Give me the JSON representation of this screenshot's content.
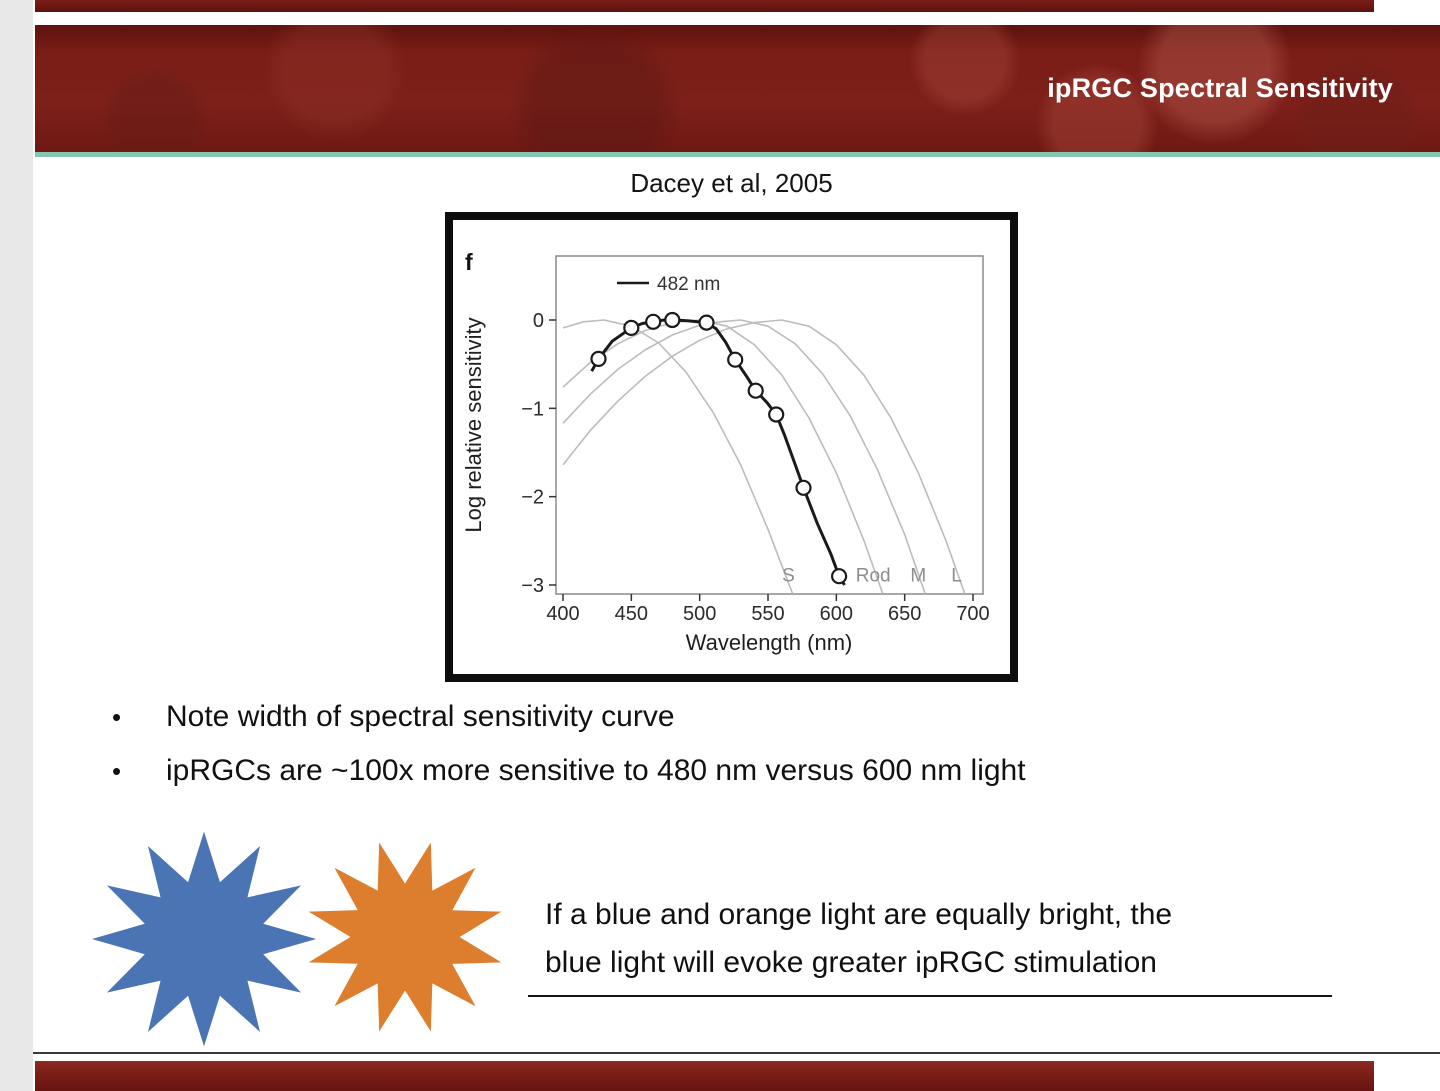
{
  "slide": {
    "title": "ipRGC Spectral Sensitivity",
    "figure_caption": "Dacey et al, 2005",
    "bullet_char": "•",
    "bullets": [
      "Note width of spectral sensitivity curve",
      "ipRGCs are ~100x more sensitive to 480 nm versus 600 nm light"
    ],
    "callout": {
      "line1": "If a blue and orange light are equally bright, the",
      "line2": "blue light will evoke greater ipRGC stimulation"
    },
    "colors": {
      "banner_red": "#7b1d17",
      "accent_teal": "#82c7ae",
      "star_blue": "#4a74b4",
      "star_orange": "#dd7e2e"
    }
  },
  "chart_data": {
    "type": "line",
    "panel_label": "f",
    "legend": "482 nm",
    "xlabel": "Wavelength (nm)",
    "ylabel": "Log relative sensitivity",
    "xlim": [
      400,
      700
    ],
    "ylim": [
      -3,
      0.7
    ],
    "grid": false,
    "xticks": [
      400,
      450,
      500,
      550,
      600,
      650,
      700
    ],
    "yticks": [
      0,
      -1,
      -2,
      -3
    ],
    "ytick_labels": [
      "0",
      "−1",
      "−2",
      "−3"
    ],
    "series": [
      {
        "name": "S cone nomogram",
        "label": "S",
        "label_at": [
          565,
          -2.88
        ],
        "color": "#bcbcbc",
        "width": 1.6,
        "points": [
          [
            400,
            -0.09
          ],
          [
            415,
            -0.02
          ],
          [
            430,
            0
          ],
          [
            450,
            -0.07
          ],
          [
            470,
            -0.26
          ],
          [
            490,
            -0.59
          ],
          [
            510,
            -1.05
          ],
          [
            530,
            -1.64
          ],
          [
            550,
            -2.37
          ],
          [
            568,
            -3.1
          ]
        ]
      },
      {
        "name": "Rod nomogram",
        "label": "Rod",
        "label_at": [
          627,
          -2.88
        ],
        "color": "#bcbcbc",
        "width": 1.6,
        "points": [
          [
            400,
            -0.76
          ],
          [
            420,
            -0.48
          ],
          [
            440,
            -0.27
          ],
          [
            460,
            -0.12
          ],
          [
            480,
            -0.03
          ],
          [
            500,
            0
          ],
          [
            520,
            -0.07
          ],
          [
            540,
            -0.28
          ],
          [
            560,
            -0.62
          ],
          [
            580,
            -1.11
          ],
          [
            600,
            -1.73
          ],
          [
            620,
            -2.49
          ],
          [
            634,
            -3.1
          ]
        ]
      },
      {
        "name": "M cone nomogram",
        "label": "M",
        "label_at": [
          660,
          -2.88
        ],
        "color": "#bcbcbc",
        "width": 1.6,
        "points": [
          [
            400,
            -1.17
          ],
          [
            420,
            -0.84
          ],
          [
            440,
            -0.56
          ],
          [
            460,
            -0.34
          ],
          [
            480,
            -0.17
          ],
          [
            500,
            -0.06
          ],
          [
            515,
            -0.02
          ],
          [
            530,
            0
          ],
          [
            550,
            -0.07
          ],
          [
            570,
            -0.27
          ],
          [
            590,
            -0.61
          ],
          [
            610,
            -1.08
          ],
          [
            630,
            -1.69
          ],
          [
            650,
            -2.43
          ],
          [
            665,
            -3.1
          ]
        ]
      },
      {
        "name": "L cone nomogram",
        "label": "L",
        "label_at": [
          688,
          -2.88
        ],
        "color": "#bcbcbc",
        "width": 1.6,
        "points": [
          [
            400,
            -1.64
          ],
          [
            420,
            -1.25
          ],
          [
            440,
            -0.92
          ],
          [
            460,
            -0.64
          ],
          [
            480,
            -0.41
          ],
          [
            500,
            -0.23
          ],
          [
            520,
            -0.1
          ],
          [
            540,
            -0.03
          ],
          [
            560,
            0
          ],
          [
            580,
            -0.07
          ],
          [
            600,
            -0.28
          ],
          [
            620,
            -0.62
          ],
          [
            640,
            -1.11
          ],
          [
            660,
            -1.73
          ],
          [
            680,
            -2.49
          ],
          [
            694,
            -3.1
          ]
        ]
      },
      {
        "name": "ipRGC (482 nm peak)",
        "color": "#1a1a1a",
        "width": 3,
        "points": [
          [
            421,
            -0.58
          ],
          [
            426,
            -0.44
          ],
          [
            436,
            -0.24
          ],
          [
            450,
            -0.09
          ],
          [
            458,
            -0.04
          ],
          [
            466,
            -0.02
          ],
          [
            474,
            0
          ],
          [
            482,
            0
          ],
          [
            492,
            -0.01
          ],
          [
            505,
            -0.03
          ],
          [
            512,
            -0.1
          ],
          [
            519,
            -0.25
          ],
          [
            526,
            -0.45
          ],
          [
            534,
            -0.63
          ],
          [
            541,
            -0.8
          ],
          [
            549,
            -0.93
          ],
          [
            556,
            -1.07
          ],
          [
            562,
            -1.3
          ],
          [
            569,
            -1.6
          ],
          [
            576,
            -1.9
          ],
          [
            586,
            -2.3
          ],
          [
            596,
            -2.65
          ],
          [
            602,
            -2.9
          ],
          [
            606,
            -3.0
          ]
        ],
        "markers": [
          [
            426,
            -0.44
          ],
          [
            450,
            -0.09
          ],
          [
            466,
            -0.02
          ],
          [
            480,
            0
          ],
          [
            505,
            -0.03
          ],
          [
            526,
            -0.45
          ],
          [
            541,
            -0.8
          ],
          [
            556,
            -1.07
          ],
          [
            576,
            -1.9
          ],
          [
            602,
            -2.9
          ]
        ]
      }
    ]
  }
}
